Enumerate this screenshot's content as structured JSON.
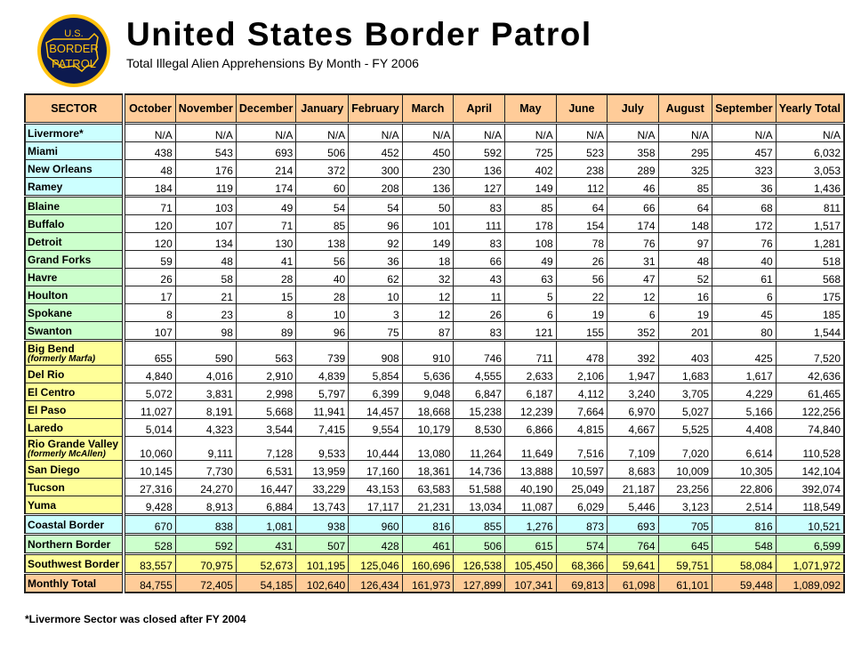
{
  "header": {
    "title": "United States Border Patrol",
    "subtitle": "Total Illegal Alien Apprehensions By Month - FY 2006",
    "logo_text": [
      "U.S.",
      "BORDER",
      "PATROL"
    ]
  },
  "colors": {
    "coastal": "#ccffff",
    "northern": "#ccffcc",
    "southwest": "#ffff99",
    "total": "#ffcc99",
    "header": "#ffcc99"
  },
  "table": {
    "columns": [
      "SECTOR",
      "October",
      "November",
      "December",
      "January",
      "February",
      "March",
      "April",
      "May",
      "June",
      "July",
      "August",
      "September",
      "Yearly Total"
    ],
    "rows": [
      {
        "sector": "Livermore*",
        "group": "coastal",
        "values": [
          "N/A",
          "N/A",
          "N/A",
          "N/A",
          "N/A",
          "N/A",
          "N/A",
          "N/A",
          "N/A",
          "N/A",
          "N/A",
          "N/A",
          "N/A"
        ]
      },
      {
        "sector": "Miami",
        "group": "coastal",
        "values": [
          "438",
          "543",
          "693",
          "506",
          "452",
          "450",
          "592",
          "725",
          "523",
          "358",
          "295",
          "457",
          "6,032"
        ]
      },
      {
        "sector": "New Orleans",
        "group": "coastal",
        "values": [
          "48",
          "176",
          "214",
          "372",
          "300",
          "230",
          "136",
          "402",
          "238",
          "289",
          "325",
          "323",
          "3,053"
        ]
      },
      {
        "sector": "Ramey",
        "group": "coastal",
        "values": [
          "184",
          "119",
          "174",
          "60",
          "208",
          "136",
          "127",
          "149",
          "112",
          "46",
          "85",
          "36",
          "1,436"
        ]
      },
      {
        "sector": "Blaine",
        "group": "northern",
        "values": [
          "71",
          "103",
          "49",
          "54",
          "54",
          "50",
          "83",
          "85",
          "64",
          "66",
          "64",
          "68",
          "811"
        ]
      },
      {
        "sector": "Buffalo",
        "group": "northern",
        "values": [
          "120",
          "107",
          "71",
          "85",
          "96",
          "101",
          "111",
          "178",
          "154",
          "174",
          "148",
          "172",
          "1,517"
        ]
      },
      {
        "sector": "Detroit",
        "group": "northern",
        "values": [
          "120",
          "134",
          "130",
          "138",
          "92",
          "149",
          "83",
          "108",
          "78",
          "76",
          "97",
          "76",
          "1,281"
        ]
      },
      {
        "sector": "Grand Forks",
        "group": "northern",
        "values": [
          "59",
          "48",
          "41",
          "56",
          "36",
          "18",
          "66",
          "49",
          "26",
          "31",
          "48",
          "40",
          "518"
        ]
      },
      {
        "sector": "Havre",
        "group": "northern",
        "values": [
          "26",
          "58",
          "28",
          "40",
          "62",
          "32",
          "43",
          "63",
          "56",
          "47",
          "52",
          "61",
          "568"
        ]
      },
      {
        "sector": "Houlton",
        "group": "northern",
        "values": [
          "17",
          "21",
          "15",
          "28",
          "10",
          "12",
          "11",
          "5",
          "22",
          "12",
          "16",
          "6",
          "175"
        ]
      },
      {
        "sector": "Spokane",
        "group": "northern",
        "values": [
          "8",
          "23",
          "8",
          "10",
          "3",
          "12",
          "26",
          "6",
          "19",
          "6",
          "19",
          "45",
          "185"
        ]
      },
      {
        "sector": "Swanton",
        "group": "northern",
        "values": [
          "107",
          "98",
          "89",
          "96",
          "75",
          "87",
          "83",
          "121",
          "155",
          "352",
          "201",
          "80",
          "1,544"
        ]
      },
      {
        "sector": "Big Bend",
        "note": "(formerly Marfa)",
        "group": "southwest",
        "values": [
          "655",
          "590",
          "563",
          "739",
          "908",
          "910",
          "746",
          "711",
          "478",
          "392",
          "403",
          "425",
          "7,520"
        ]
      },
      {
        "sector": "Del Rio",
        "group": "southwest",
        "values": [
          "4,840",
          "4,016",
          "2,910",
          "4,839",
          "5,854",
          "5,636",
          "4,555",
          "2,633",
          "2,106",
          "1,947",
          "1,683",
          "1,617",
          "42,636"
        ]
      },
      {
        "sector": "El Centro",
        "group": "southwest",
        "values": [
          "5,072",
          "3,831",
          "2,998",
          "5,797",
          "6,399",
          "9,048",
          "6,847",
          "6,187",
          "4,112",
          "3,240",
          "3,705",
          "4,229",
          "61,465"
        ]
      },
      {
        "sector": "El Paso",
        "group": "southwest",
        "values": [
          "11,027",
          "8,191",
          "5,668",
          "11,941",
          "14,457",
          "18,668",
          "15,238",
          "12,239",
          "7,664",
          "6,970",
          "5,027",
          "5,166",
          "122,256"
        ]
      },
      {
        "sector": "Laredo",
        "group": "southwest",
        "values": [
          "5,014",
          "4,323",
          "3,544",
          "7,415",
          "9,554",
          "10,179",
          "8,530",
          "6,866",
          "4,815",
          "4,667",
          "5,525",
          "4,408",
          "74,840"
        ]
      },
      {
        "sector": "Rio Grande Valley",
        "note": "(formerly McAllen)",
        "group": "southwest",
        "values": [
          "10,060",
          "9,111",
          "7,128",
          "9,533",
          "10,444",
          "13,080",
          "11,264",
          "11,649",
          "7,516",
          "7,109",
          "7,020",
          "6,614",
          "110,528"
        ]
      },
      {
        "sector": "San Diego",
        "group": "southwest",
        "values": [
          "10,145",
          "7,730",
          "6,531",
          "13,959",
          "17,160",
          "18,361",
          "14,736",
          "13,888",
          "10,597",
          "8,683",
          "10,009",
          "10,305",
          "142,104"
        ]
      },
      {
        "sector": "Tucson",
        "group": "southwest",
        "values": [
          "27,316",
          "24,270",
          "16,447",
          "33,229",
          "43,153",
          "63,583",
          "51,588",
          "40,190",
          "25,049",
          "21,187",
          "23,256",
          "22,806",
          "392,074"
        ]
      },
      {
        "sector": "Yuma",
        "group": "southwest",
        "values": [
          "9,428",
          "8,913",
          "6,884",
          "13,743",
          "17,117",
          "21,231",
          "13,034",
          "11,087",
          "6,029",
          "5,446",
          "3,123",
          "2,514",
          "118,549"
        ]
      },
      {
        "sector": "Coastal Border",
        "group": "coastal",
        "summary": true,
        "values": [
          "670",
          "838",
          "1,081",
          "938",
          "960",
          "816",
          "855",
          "1,276",
          "873",
          "693",
          "705",
          "816",
          "10,521"
        ]
      },
      {
        "sector": "Northern Border",
        "group": "northern",
        "summary": true,
        "values": [
          "528",
          "592",
          "431",
          "507",
          "428",
          "461",
          "506",
          "615",
          "574",
          "764",
          "645",
          "548",
          "6,599"
        ]
      },
      {
        "sector": "Southwest Border",
        "group": "southwest",
        "summary": true,
        "values": [
          "83,557",
          "70,975",
          "52,673",
          "101,195",
          "125,046",
          "160,696",
          "126,538",
          "105,450",
          "68,366",
          "59,641",
          "59,751",
          "58,084",
          "1,071,972"
        ]
      },
      {
        "sector": "Monthly Total",
        "group": "total",
        "summary": true,
        "values": [
          "84,755",
          "72,405",
          "54,185",
          "102,640",
          "126,434",
          "161,973",
          "127,899",
          "107,341",
          "69,813",
          "61,098",
          "61,101",
          "59,448",
          "1,089,092"
        ]
      }
    ]
  },
  "footnote": "*Livermore Sector was closed after FY 2004"
}
